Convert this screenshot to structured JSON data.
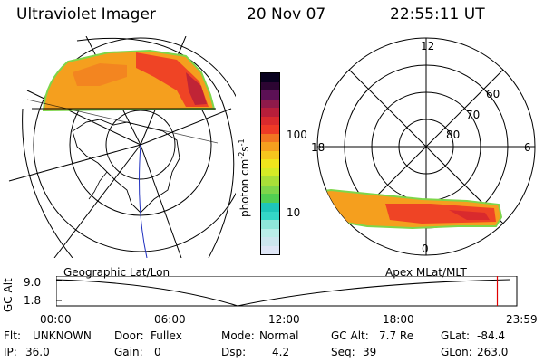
{
  "header": {
    "title": "Ultraviolet Imager",
    "date": "20 Nov 07",
    "time": "22:55:11 UT"
  },
  "colorbar": {
    "label_html": "photon cm⁻²s⁻¹",
    "ticks": [
      "100",
      "10"
    ],
    "colors": [
      "#dfe6f6",
      "#cce6ee",
      "#b9ede8",
      "#8fe6d9",
      "#34d6c6",
      "#1ec6b9",
      "#51cf52",
      "#7ed64a",
      "#a9df38",
      "#d6ea26",
      "#f0e41c",
      "#f6c61e",
      "#f59f1e",
      "#f27421",
      "#ee3a26",
      "#d92a2d",
      "#b71e3a",
      "#8f1a4a",
      "#5c1055",
      "#2c0532",
      "#08011e"
    ]
  },
  "polar_plot": {
    "labels": {
      "top": "12",
      "left": "18",
      "right": "6",
      "bottom": "0"
    },
    "rings": [
      "60",
      "70",
      "80"
    ],
    "caption": "Apex MLat/MLT"
  },
  "map_plot": {
    "caption": "Geographic Lat/Lon"
  },
  "timeline": {
    "ylabel": "GC Alt",
    "yticks": [
      "9.0",
      "1.8"
    ],
    "xticks": [
      "00:00",
      "06:00",
      "12:00",
      "18:00",
      "23:59"
    ],
    "marker_fraction": 0.9577,
    "marker_color": "#e00000"
  },
  "info": {
    "row1": [
      {
        "key": "Flt:",
        "val": "UNKNOWN"
      },
      {
        "key": "Door:",
        "val": "Fullex"
      },
      {
        "key": "Mode:",
        "val": "Normal"
      },
      {
        "key": "GC Alt:",
        "val": "7.7 Re"
      },
      {
        "key": "GLat:",
        "val": "-84.4"
      }
    ],
    "row2": [
      {
        "key": "IP:",
        "val": "36.0"
      },
      {
        "key": "Gain:",
        "val": "0"
      },
      {
        "key": "Dsp:",
        "val": "4.2"
      },
      {
        "key": "Seq:",
        "val": "39"
      },
      {
        "key": "GLon:",
        "val": "263.0"
      }
    ]
  }
}
